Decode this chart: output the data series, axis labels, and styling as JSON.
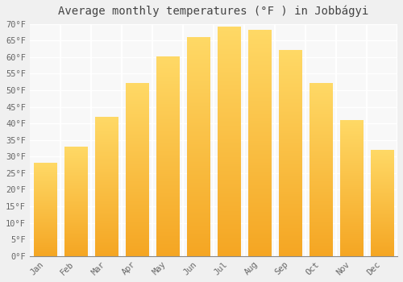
{
  "months": [
    "Jan",
    "Feb",
    "Mar",
    "Apr",
    "May",
    "Jun",
    "Jul",
    "Aug",
    "Sep",
    "Oct",
    "Nov",
    "Dec"
  ],
  "values": [
    28,
    33,
    42,
    52,
    60,
    66,
    69,
    68,
    62,
    52,
    41,
    32
  ],
  "bar_color_dark": "#F5A623",
  "bar_color_light": "#FFD966",
  "title": "Average monthly temperatures (°F ) in Jobbágyi",
  "ylim": [
    0,
    70
  ],
  "yticks": [
    0,
    5,
    10,
    15,
    20,
    25,
    30,
    35,
    40,
    45,
    50,
    55,
    60,
    65,
    70
  ],
  "background_color": "#f0f0f0",
  "plot_bg_color": "#f8f8f8",
  "grid_color": "#ffffff",
  "title_fontsize": 10,
  "tick_fontsize": 7.5,
  "font_family": "monospace",
  "tick_color": "#666666"
}
